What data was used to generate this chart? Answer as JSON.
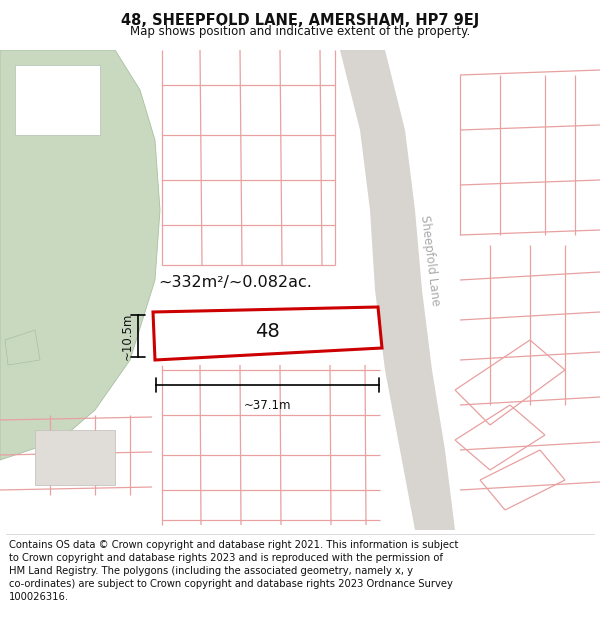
{
  "title": "48, SHEEPFOLD LANE, AMERSHAM, HP7 9EJ",
  "subtitle": "Map shows position and indicative extent of the property.",
  "footer": "Contains OS data © Crown copyright and database right 2021. This information is subject\nto Crown copyright and database rights 2023 and is reproduced with the permission of\nHM Land Registry. The polygons (including the associated geometry, namely x, y\nco-ordinates) are subject to Crown copyright and database rights 2023 Ordnance Survey\n100026316.",
  "bg_color": "#ffffff",
  "map_bg": "#f5f2ee",
  "title_fontsize": 10.5,
  "subtitle_fontsize": 8.5,
  "footer_fontsize": 7.2,
  "property_label": "48",
  "area_text": "~332m²/~0.082ac.",
  "width_text": "~37.1m",
  "height_text": "~10.5m",
  "road_color": "#d8d5d0",
  "plot_line_color": "#e8a0a0",
  "highlight_color": "#cc0000",
  "green_color": "#c8d9c0",
  "dark_text": "#111111",
  "gray_text": "#aaaaaa",
  "building_fill": "#e0ddd8",
  "building_edge": "#c0bdb8"
}
